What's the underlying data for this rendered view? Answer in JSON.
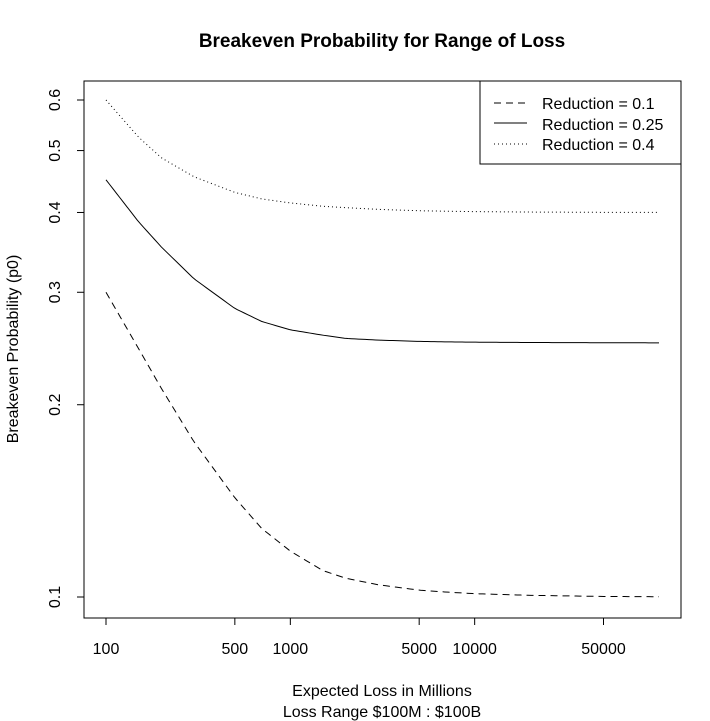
{
  "chart_data": {
    "type": "line",
    "title": "Breakeven Probability for Range of Loss",
    "xlabel": "Expected Loss in Millions",
    "xlabel2": "Loss Range $100M : $100B",
    "ylabel": "Breakeven Probability (p0)",
    "x_scale": "log",
    "y_scale": "log",
    "xlim": [
      100,
      100000
    ],
    "ylim": [
      0.1,
      0.6
    ],
    "x_ticks": [
      {
        "value": 100,
        "label": "100"
      },
      {
        "value": 500,
        "label": "500"
      },
      {
        "value": 1000,
        "label": "1000"
      },
      {
        "value": 5000,
        "label": "5000"
      },
      {
        "value": 10000,
        "label": "10000"
      },
      {
        "value": 50000,
        "label": "50000"
      }
    ],
    "y_ticks": [
      {
        "value": 0.1,
        "label": "0.1"
      },
      {
        "value": 0.2,
        "label": "0.2"
      },
      {
        "value": 0.3,
        "label": "0.3"
      },
      {
        "value": 0.4,
        "label": "0.4"
      },
      {
        "value": 0.5,
        "label": "0.5"
      },
      {
        "value": 0.6,
        "label": "0.6"
      }
    ],
    "grid": false,
    "legend_position": "top-right",
    "series": [
      {
        "name": "Reduction = 0.1",
        "line_style": "dashed",
        "color": "#000000",
        "x": [
          100,
          150,
          200,
          300,
          500,
          700,
          1000,
          1500,
          2000,
          3000,
          5000,
          7000,
          10000,
          20000,
          50000,
          100000
        ],
        "y": [
          0.3,
          0.245,
          0.212,
          0.175,
          0.143,
          0.128,
          0.118,
          0.11,
          0.107,
          0.1045,
          0.1025,
          0.1018,
          0.1012,
          0.1006,
          0.1002,
          0.1001
        ]
      },
      {
        "name": "Reduction = 0.25",
        "line_style": "solid",
        "color": "#000000",
        "x": [
          100,
          150,
          200,
          300,
          500,
          700,
          1000,
          1500,
          2000,
          3000,
          5000,
          7000,
          10000,
          20000,
          50000,
          100000
        ],
        "y": [
          0.45,
          0.387,
          0.353,
          0.315,
          0.283,
          0.27,
          0.262,
          0.257,
          0.254,
          0.2525,
          0.2513,
          0.2509,
          0.2506,
          0.2503,
          0.2501,
          0.25
        ]
      },
      {
        "name": "Reduction = 0.4",
        "line_style": "dotted",
        "color": "#000000",
        "x": [
          100,
          150,
          200,
          300,
          500,
          700,
          1000,
          1500,
          2000,
          3000,
          5000,
          7000,
          10000,
          20000,
          50000,
          100000
        ],
        "y": [
          0.6,
          0.525,
          0.487,
          0.455,
          0.43,
          0.42,
          0.414,
          0.409,
          0.407,
          0.4045,
          0.4025,
          0.4018,
          0.4012,
          0.4006,
          0.4002,
          0.4001
        ]
      }
    ]
  }
}
